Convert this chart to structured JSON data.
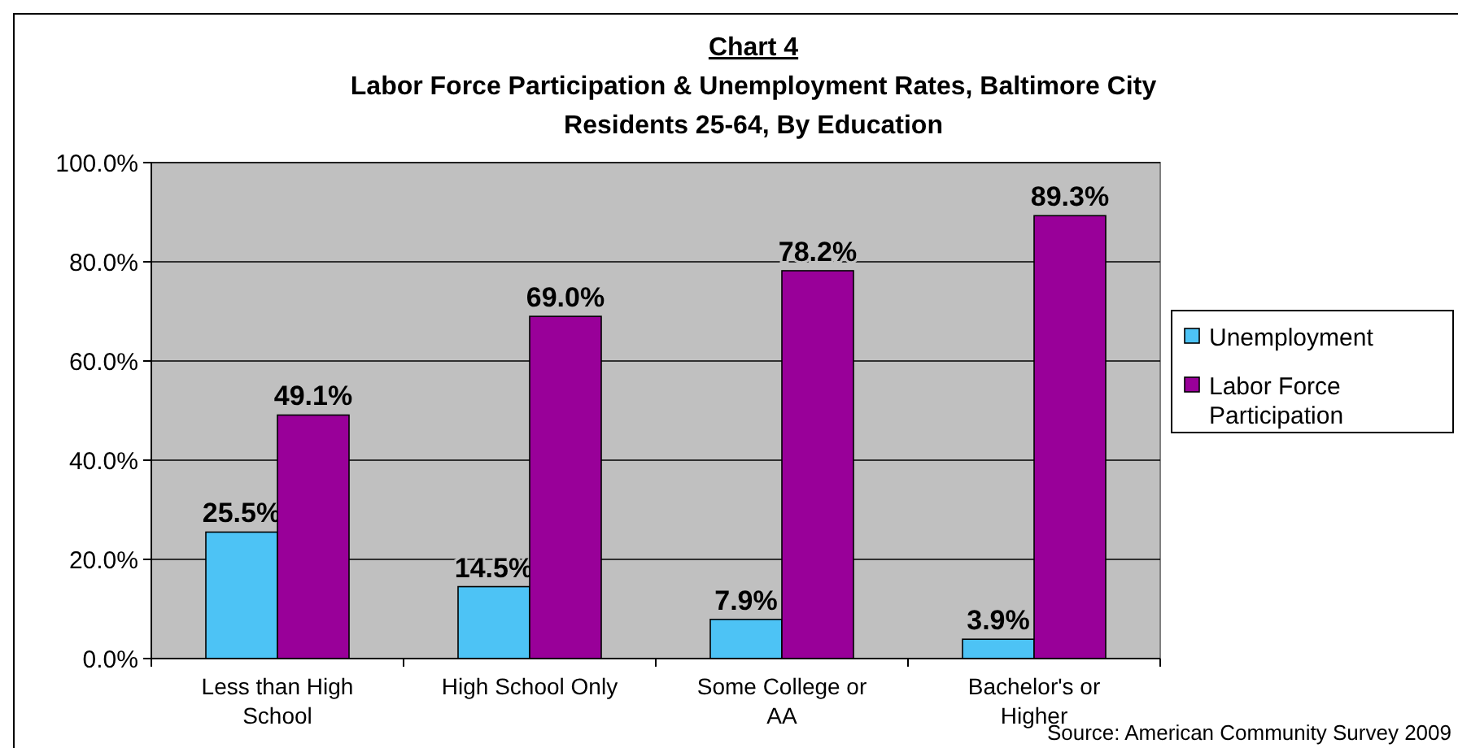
{
  "chart_data": {
    "type": "bar",
    "title": "Chart 4",
    "subtitle": "Labor Force Participation & Unemployment Rates, Baltimore City Residents 25-64, By Education",
    "categories": [
      "Less than High School",
      "High School Only",
      "Some College or AA",
      "Bachelor's or Higher"
    ],
    "series": [
      {
        "name": "Unemployment",
        "color": "#4dc3f5",
        "values": [
          25.5,
          14.5,
          7.9,
          3.9
        ],
        "value_labels": [
          "25.5%",
          "14.5%",
          "7.9%",
          "3.9%"
        ]
      },
      {
        "name": "Labor Force Participation",
        "color": "#990099",
        "values": [
          49.1,
          69.0,
          78.2,
          89.3
        ],
        "value_labels": [
          "49.1%",
          "69.0%",
          "78.2%",
          "89.3%"
        ]
      }
    ],
    "ylim": [
      0,
      100
    ],
    "yticks": [
      {
        "value": 0,
        "label": "0.0%"
      },
      {
        "value": 20,
        "label": "20.0%"
      },
      {
        "value": 40,
        "label": "40.0%"
      },
      {
        "value": 60,
        "label": "60.0%"
      },
      {
        "value": 80,
        "label": "80.0%"
      },
      {
        "value": 100,
        "label": "100.0%"
      }
    ],
    "grid": "y",
    "legend": "right",
    "annotations": [
      "Source: American Community Survey 2009"
    ]
  }
}
